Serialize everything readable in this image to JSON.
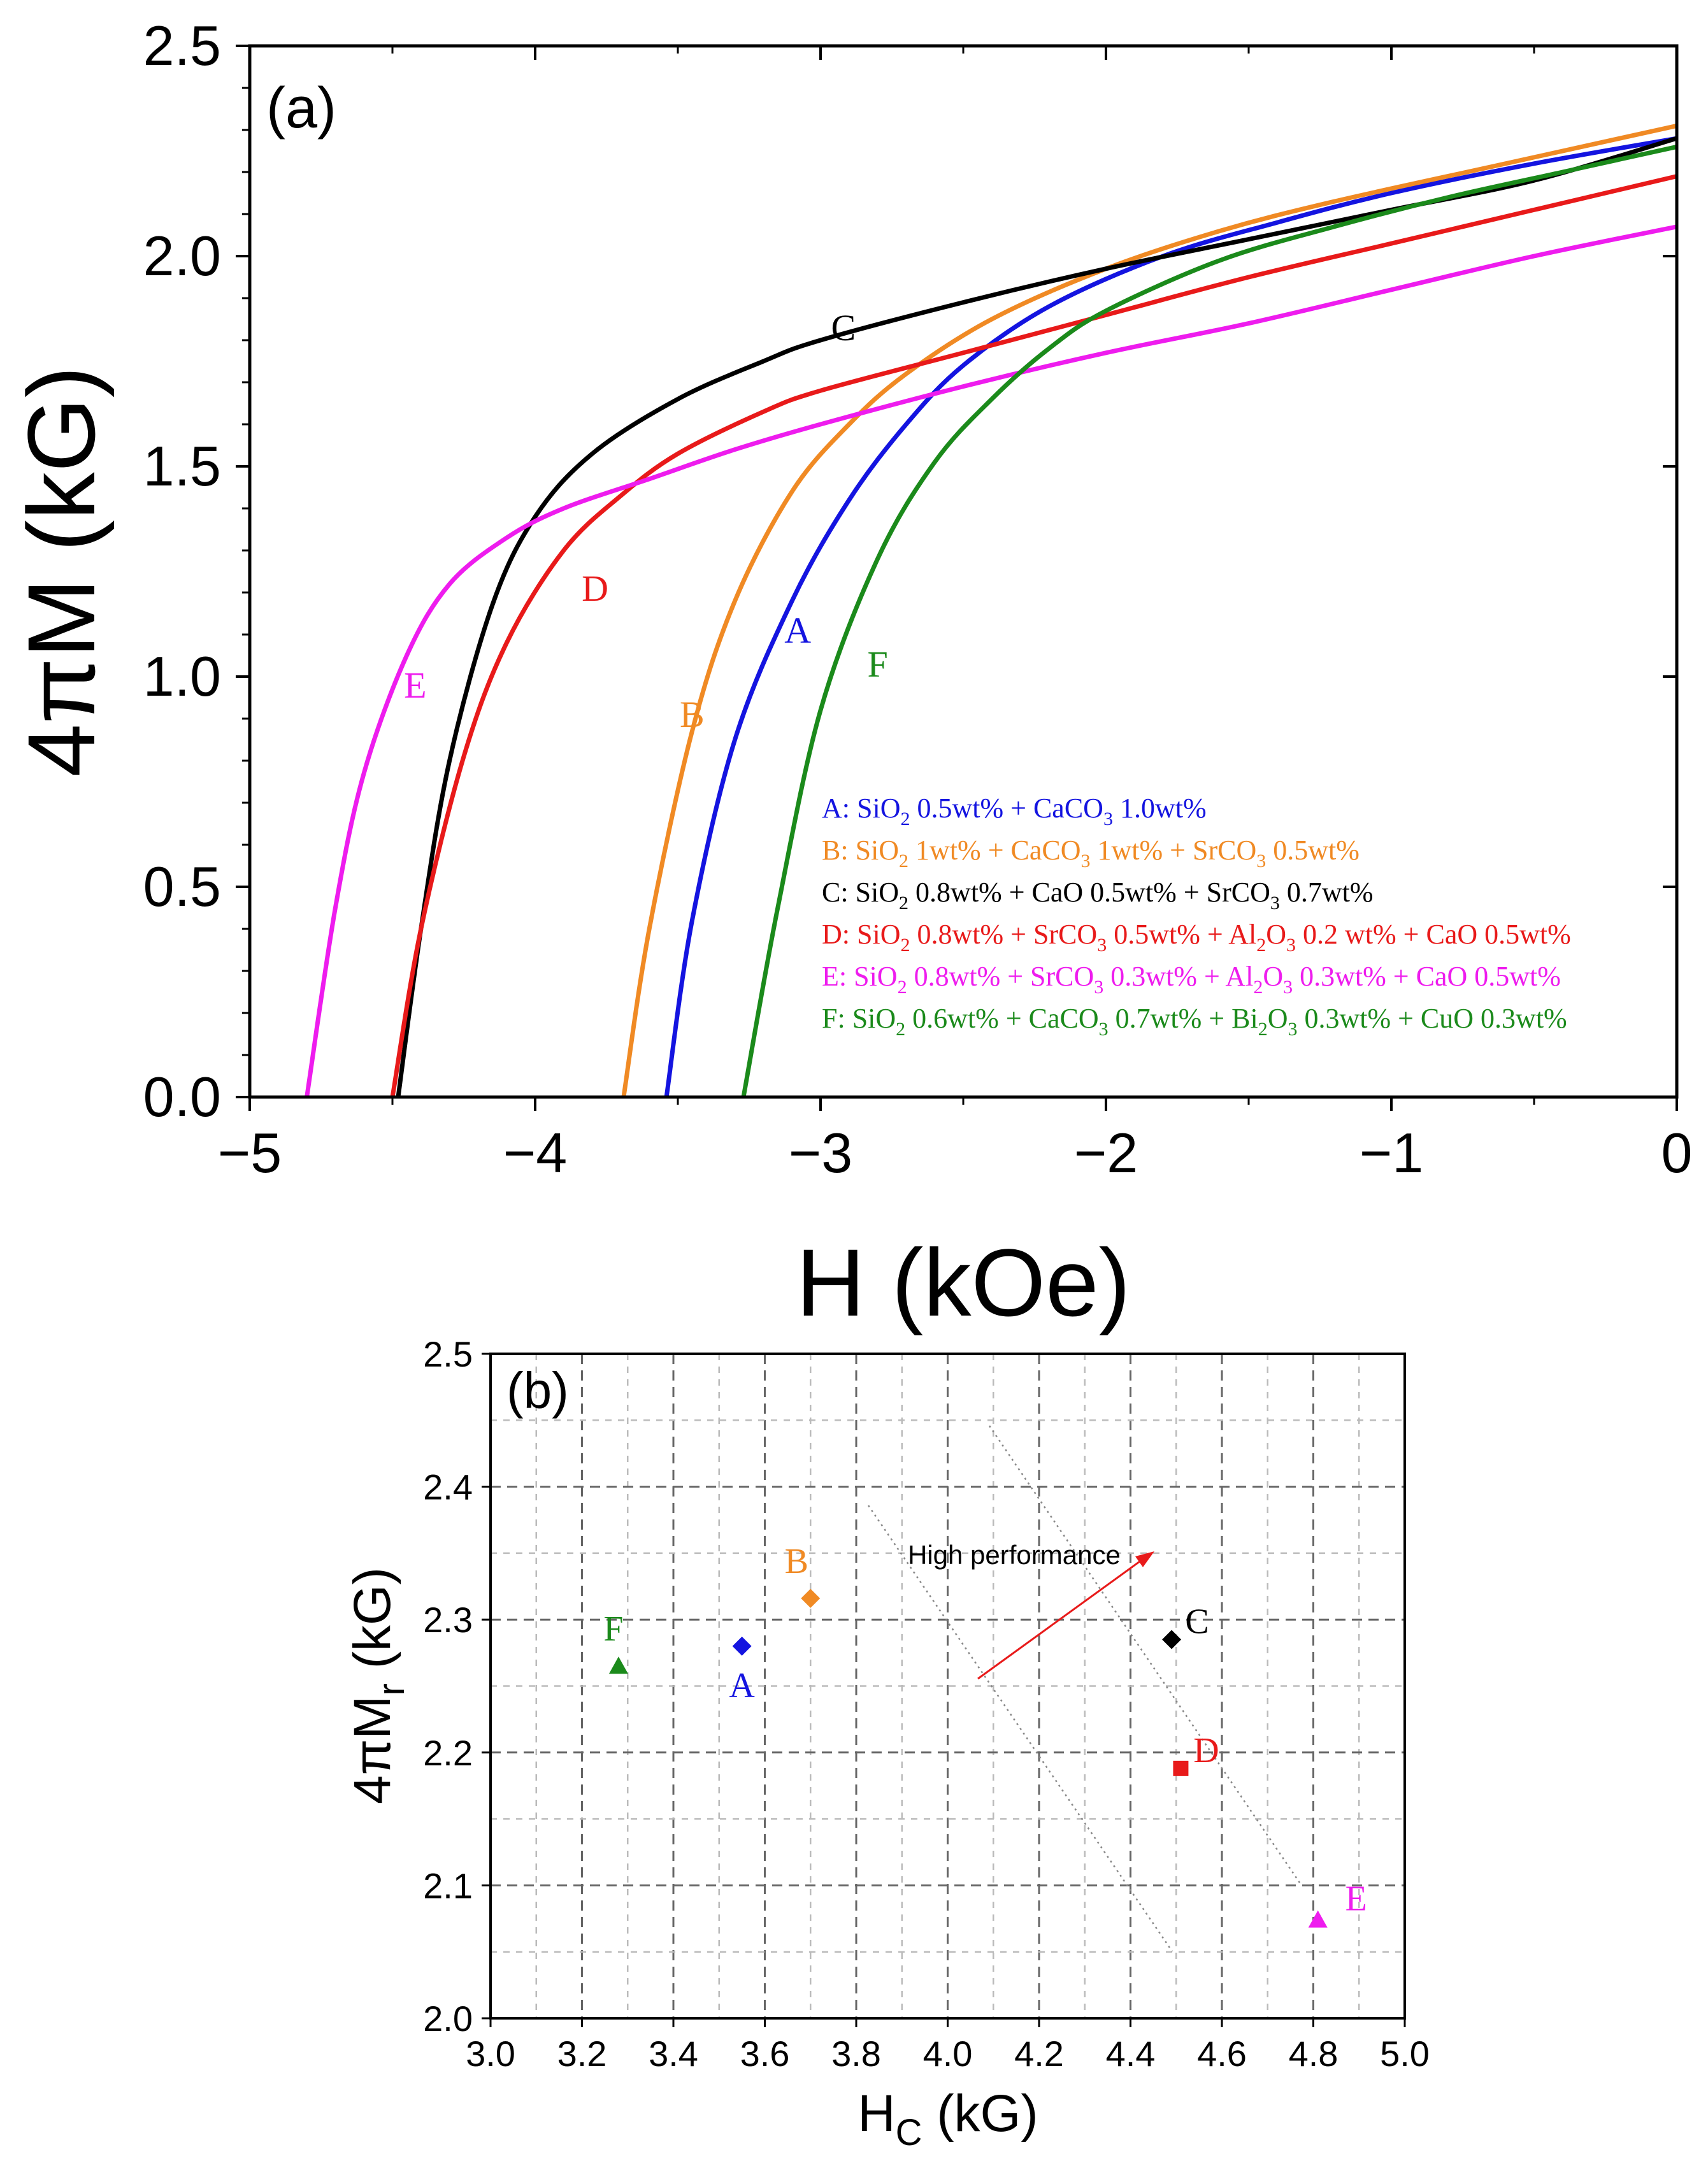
{
  "chart_data": [
    {
      "panel": "(a)",
      "type": "line",
      "xlabel": "H (kOe)",
      "ylabel": "4πM (kG)",
      "xlim": [
        -5,
        0
      ],
      "ylim": [
        0,
        2.5
      ],
      "xticks": [
        "−5",
        "−4",
        "−3",
        "−2",
        "−1",
        "0"
      ],
      "yticks": [
        "0.0",
        "0.5",
        "1.0",
        "1.5",
        "2.0",
        "2.5"
      ],
      "grid": false,
      "legend_position": "bottom-right",
      "series": [
        {
          "name": "A",
          "color": "#1414e0",
          "legend": {
            "pre": "A: SiO",
            "s1": "2",
            "mid1": " 0.5wt% + CaCO",
            "s2": "3",
            "post": " 1.0wt%"
          },
          "x": [
            -3.54,
            -3.45,
            -3.3,
            -3.1,
            -2.9,
            -2.7,
            -2.5,
            -2.2,
            -1.8,
            -1.4,
            -1.0,
            -0.5,
            0
          ],
          "y": [
            0.0,
            0.42,
            0.85,
            1.18,
            1.42,
            1.6,
            1.74,
            1.88,
            2.0,
            2.08,
            2.15,
            2.22,
            2.28
          ]
        },
        {
          "name": "B",
          "color": "#f08a24",
          "legend": {
            "pre": "B: SiO",
            "s1": "2",
            "mid1": " 1wt% + CaCO",
            "s2": "3",
            "mid2": " 1wt% + SrCO",
            "s3": "3",
            "post": " 0.5wt%"
          },
          "x": [
            -3.69,
            -3.6,
            -3.45,
            -3.3,
            -3.1,
            -2.9,
            -2.7,
            -2.4,
            -2.0,
            -1.6,
            -1.2,
            -0.6,
            0
          ],
          "y": [
            0.0,
            0.4,
            0.87,
            1.18,
            1.44,
            1.6,
            1.72,
            1.85,
            1.97,
            2.06,
            2.13,
            2.22,
            2.31
          ]
        },
        {
          "name": "C",
          "color": "#000000",
          "legend": {
            "pre": "C: SiO",
            "s1": "2",
            "mid1": " 0.8wt% + CaO 0.5wt% + SrCO",
            "s2": "3",
            "post": " 0.7wt%"
          },
          "x": [
            -4.48,
            -4.4,
            -4.3,
            -4.15,
            -4.0,
            -3.8,
            -3.5,
            -3.2,
            -3.0,
            -2.5,
            -2.0,
            -1.5,
            -1.0,
            -0.5,
            0
          ],
          "y": [
            0.0,
            0.4,
            0.8,
            1.17,
            1.38,
            1.53,
            1.66,
            1.75,
            1.8,
            1.89,
            1.97,
            2.04,
            2.11,
            2.18,
            2.28
          ]
        },
        {
          "name": "D",
          "color": "#e81a1a",
          "legend": {
            "pre": "D: SiO",
            "s1": "2",
            "mid1": " 0.8wt% + SrCO",
            "s2": "3",
            "mid2": " 0.5wt% + Al",
            "s3": "2",
            "mid3": "O",
            "s4": "3",
            "post": " 0.2 wt% + CaO 0.5wt%"
          },
          "x": [
            -4.5,
            -4.4,
            -4.25,
            -4.1,
            -3.9,
            -3.7,
            -3.5,
            -3.2,
            -3.0,
            -2.5,
            -2.0,
            -1.5,
            -1.0,
            -0.5,
            0
          ],
          "y": [
            0.0,
            0.4,
            0.81,
            1.08,
            1.3,
            1.43,
            1.53,
            1.63,
            1.68,
            1.77,
            1.86,
            1.95,
            2.03,
            2.11,
            2.19
          ]
        },
        {
          "name": "E",
          "color": "#ee1cee",
          "legend": {
            "pre": "E: SiO",
            "s1": "2",
            "mid1": " 0.8wt% + SrCO",
            "s2": "3",
            "mid2": " 0.3wt% + Al",
            "s3": "2",
            "mid3": "O",
            "s4": "3",
            "post": " 0.3wt% + CaO 0.5wt%"
          },
          "x": [
            -4.8,
            -4.7,
            -4.6,
            -4.45,
            -4.3,
            -4.1,
            -3.9,
            -3.6,
            -3.3,
            -3.0,
            -2.5,
            -2.0,
            -1.5,
            -1.0,
            -0.5,
            0
          ],
          "y": [
            0.0,
            0.45,
            0.77,
            1.05,
            1.22,
            1.33,
            1.4,
            1.47,
            1.54,
            1.6,
            1.69,
            1.77,
            1.84,
            1.92,
            2.0,
            2.07
          ]
        },
        {
          "name": "F",
          "color": "#1b8a1b",
          "legend": {
            "pre": "F: SiO",
            "s1": "2",
            "mid1": " 0.6wt% + CaCO",
            "s2": "3",
            "mid2": " 0.7wt% + Bi",
            "s3": "2",
            "mid3": "O",
            "s4": "3",
            "mid4": " 0.3wt% + CuO 0.3wt%",
            "post": ""
          },
          "x": [
            -3.27,
            -3.15,
            -3.0,
            -2.8,
            -2.6,
            -2.4,
            -2.2,
            -2.0,
            -1.6,
            -1.2,
            -0.8,
            -0.4,
            0
          ],
          "y": [
            0.0,
            0.45,
            0.92,
            1.28,
            1.51,
            1.66,
            1.78,
            1.87,
            1.99,
            2.07,
            2.14,
            2.2,
            2.26
          ]
        }
      ],
      "curve_labels": [
        {
          "text": "A",
          "x": -3.08,
          "y": 1.08
        },
        {
          "text": "B",
          "x": -3.45,
          "y": 0.88
        },
        {
          "text": "C",
          "x": -2.92,
          "y": 1.8
        },
        {
          "text": "D",
          "x": -3.79,
          "y": 1.18
        },
        {
          "text": "E",
          "x": -4.42,
          "y": 0.95
        },
        {
          "text": "F",
          "x": -2.8,
          "y": 1.0
        }
      ]
    },
    {
      "panel": "(b)",
      "type": "scatter",
      "xlabel_main": "H",
      "xlabel_sub": "C",
      "xlabel_post": " (kG)",
      "ylabel_main": "4πM",
      "ylabel_sub": "r",
      "ylabel_post": " (kG)",
      "xlim": [
        3.0,
        5.0
      ],
      "ylim": [
        2.0,
        2.5
      ],
      "xticks": [
        "3.0",
        "3.2",
        "3.4",
        "3.6",
        "3.8",
        "4.0",
        "4.2",
        "4.4",
        "4.6",
        "4.8",
        "5.0"
      ],
      "yticks": [
        "2.0",
        "2.1",
        "2.2",
        "2.3",
        "2.4",
        "2.5"
      ],
      "grid": true,
      "annotation": "High performance",
      "points": [
        {
          "name": "A",
          "x": 3.55,
          "y": 2.28,
          "marker": "diamond",
          "color": "#1414e0"
        },
        {
          "name": "B",
          "x": 3.7,
          "y": 2.316,
          "marker": "diamond",
          "color": "#f08a24"
        },
        {
          "name": "C",
          "x": 4.49,
          "y": 2.285,
          "marker": "diamond",
          "color": "#000000"
        },
        {
          "name": "D",
          "x": 4.51,
          "y": 2.188,
          "marker": "square",
          "color": "#e81a1a"
        },
        {
          "name": "E",
          "x": 4.81,
          "y": 2.074,
          "marker": "triangle",
          "color": "#ee1cee"
        },
        {
          "name": "F",
          "x": 3.28,
          "y": 2.265,
          "marker": "triangle",
          "color": "#1b8a1b"
        }
      ]
    }
  ]
}
